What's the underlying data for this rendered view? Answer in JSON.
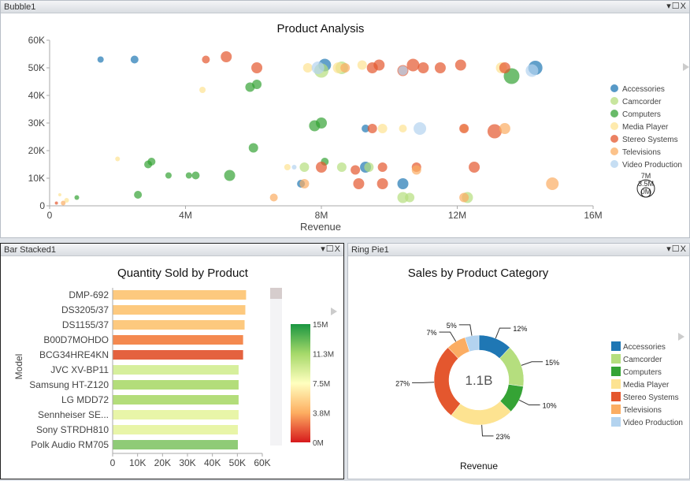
{
  "panels": {
    "bubble": "Bubble1",
    "bar": "Bar Stacked1",
    "pie": "Ring Pie1"
  },
  "controls": {
    "menu": "▾",
    "maximize": "☐",
    "close": "X"
  },
  "colors": {
    "Accessories": "#1f77b4",
    "Camcorder": "#b5de7e",
    "Computers": "#35a335",
    "Media Player": "#fde391",
    "Stereo Systems": "#e4572e",
    "Televisions": "#fbad63",
    "Video Production": "#b3d3ef"
  },
  "chart_data": [
    {
      "type": "scatter",
      "title": "Product Analysis",
      "xlabel": "Revenue",
      "ylabel": "",
      "xlim": [
        0,
        16000000
      ],
      "ylim": [
        0,
        60000
      ],
      "xticks": [
        "0",
        "4M",
        "8M",
        "12M",
        "16M"
      ],
      "yticks": [
        "0",
        "10K",
        "20K",
        "30K",
        "40K",
        "50K",
        "60K"
      ],
      "legend": [
        "Accessories",
        "Camcorder",
        "Computers",
        "Media Player",
        "Stereo Systems",
        "Televisions",
        "Video Production"
      ],
      "size_legend": [
        "7M",
        "3.5M",
        "0M"
      ],
      "series": [
        {
          "name": "Accessories",
          "points": [
            [
              1.5,
              53,
              4
            ],
            [
              2.5,
              53,
              5
            ],
            [
              8.1,
              51,
              8
            ],
            [
              9.3,
              28,
              5
            ],
            [
              9.3,
              14,
              7
            ],
            [
              10.4,
              8,
              7
            ],
            [
              14.3,
              50,
              9
            ],
            [
              7.4,
              8,
              5
            ]
          ]
        },
        {
          "name": "Camcorder",
          "points": [
            [
              8.0,
              49,
              9
            ],
            [
              8.6,
              50,
              8
            ],
            [
              7.5,
              14,
              6
            ],
            [
              8.6,
              14,
              6
            ],
            [
              9.4,
              14,
              6
            ],
            [
              10.4,
              3,
              7
            ],
            [
              10.6,
              3,
              6
            ],
            [
              12.3,
              3,
              7
            ]
          ]
        },
        {
          "name": "Computers",
          "points": [
            [
              5.9,
              43,
              6
            ],
            [
              6.1,
              44,
              6
            ],
            [
              13.6,
              47,
              10
            ],
            [
              7.8,
              29,
              7
            ],
            [
              8.0,
              30,
              7
            ],
            [
              6.0,
              21,
              6
            ],
            [
              2.9,
              15,
              5
            ],
            [
              3.0,
              16,
              5
            ],
            [
              3.5,
              11,
              4
            ],
            [
              4.1,
              11,
              4
            ],
            [
              4.3,
              11,
              5
            ],
            [
              5.3,
              11,
              7
            ],
            [
              2.6,
              4,
              5
            ],
            [
              8.1,
              16,
              5
            ],
            [
              0.8,
              3,
              3
            ]
          ]
        },
        {
          "name": "Media Player",
          "points": [
            [
              7.6,
              50,
              6
            ],
            [
              8.5,
              50,
              7
            ],
            [
              9.2,
              51,
              6
            ],
            [
              4.5,
              42,
              4
            ],
            [
              9.8,
              28,
              6
            ],
            [
              10.4,
              28,
              5
            ],
            [
              12.2,
              28,
              5
            ],
            [
              13.3,
              50,
              7
            ],
            [
              7.0,
              14,
              4
            ],
            [
              2.0,
              17,
              3
            ],
            [
              0.5,
              2,
              3
            ],
            [
              0.3,
              4,
              2
            ]
          ]
        },
        {
          "name": "Stereo Systems",
          "points": [
            [
              4.6,
              53,
              5
            ],
            [
              5.2,
              54,
              7
            ],
            [
              6.1,
              50,
              7
            ],
            [
              9.5,
              50,
              7
            ],
            [
              9.7,
              51,
              7
            ],
            [
              10.4,
              49,
              7
            ],
            [
              10.7,
              51,
              8
            ],
            [
              11.0,
              50,
              7
            ],
            [
              11.5,
              50,
              7
            ],
            [
              12.1,
              51,
              7
            ],
            [
              13.4,
              50,
              7
            ],
            [
              13.1,
              27,
              9
            ],
            [
              9.5,
              28,
              6
            ],
            [
              12.2,
              28,
              6
            ],
            [
              8.0,
              14,
              7
            ],
            [
              9.0,
              13,
              6
            ],
            [
              9.8,
              14,
              6
            ],
            [
              10.8,
              14,
              6
            ],
            [
              12.5,
              14,
              7
            ],
            [
              9.1,
              8,
              7
            ],
            [
              9.8,
              8,
              7
            ],
            [
              0.2,
              1,
              2
            ]
          ]
        },
        {
          "name": "Televisions",
          "points": [
            [
              8.7,
              50,
              6
            ],
            [
              13.4,
              28,
              7
            ],
            [
              10.8,
              13,
              6
            ],
            [
              14.8,
              8,
              8
            ],
            [
              6.6,
              3,
              5
            ],
            [
              12.2,
              3,
              6
            ],
            [
              7.5,
              8,
              6
            ],
            [
              0.4,
              1,
              3
            ]
          ]
        },
        {
          "name": "Video Production",
          "points": [
            [
              7.9,
              50,
              8
            ],
            [
              10.4,
              49,
              6
            ],
            [
              14.2,
              49,
              8
            ],
            [
              10.9,
              28,
              8
            ],
            [
              7.2,
              14,
              3
            ]
          ]
        }
      ]
    },
    {
      "type": "bar",
      "title": "Quantity Sold by Product",
      "ylabel": "Model",
      "xlabel": "",
      "xlim": [
        0,
        60000
      ],
      "xticks": [
        "0",
        "10K",
        "20K",
        "30K",
        "40K",
        "50K",
        "60K"
      ],
      "categories": [
        "DMP-692",
        "DS3205/37",
        "DS1155/37",
        "B00D7MOHDO",
        "BCG34HRE4KN",
        "JVC XV-BP11",
        "Samsung HT-Z120",
        "LG MDD72",
        "Sennheiser SE...",
        "Sony STRDH810",
        "Polk Audio RM705"
      ],
      "values": [
        53500,
        53200,
        52900,
        52300,
        52300,
        50500,
        50500,
        50500,
        50500,
        50200,
        50200
      ],
      "bar_colors": [
        "#fdc97e",
        "#fdc97e",
        "#fdc97e",
        "#f4894f",
        "#e4623f",
        "#d6ef9c",
        "#b3dd7a",
        "#b3dd7a",
        "#e8f5a8",
        "#e8f5a8",
        "#8fcb77"
      ],
      "colorscale": {
        "labels": [
          "15M",
          "11.3M",
          "7.5M",
          "3.8M",
          "0M"
        ]
      }
    },
    {
      "type": "pie",
      "title": "Sales by Product Category",
      "center_label": "1.1B",
      "xlabel": "Revenue",
      "categories": [
        "Accessories",
        "Camcorder",
        "Computers",
        "Media Player",
        "Stereo Systems",
        "Televisions",
        "Video Production"
      ],
      "values": [
        12,
        15,
        10,
        23,
        27,
        7,
        5
      ],
      "labels": [
        "12%",
        "15%",
        "10%",
        "23%",
        "27%",
        "7%",
        "5%"
      ]
    }
  ]
}
